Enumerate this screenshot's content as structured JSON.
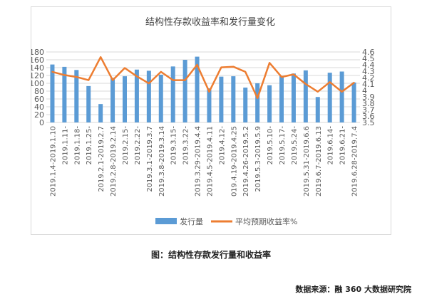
{
  "chart_data": {
    "type": "bar",
    "title": "结构性存款收益率和发行量变化",
    "categories": [
      "2019.1.4-2019.1.10",
      "2019.1.11-",
      "2019.1.18-",
      "2019.1.25-",
      "2019.2.1-2019.2.7",
      "2019.2.8-2019.2.14",
      "2019.2.15-",
      "2019.2.22-",
      "2019.3.1-2019.3.7",
      "2019.3.8-2019.3.14",
      "2019.3.15-",
      "2019.3.22-",
      "2019.3.29-2019.4.4",
      "2019.4.5-2019.4.11",
      "2019.4.12-",
      "019.4.19-2019.4.25",
      "2019.4.26-2019.5.2",
      "2019.5.3-2019.5.9",
      "2019.5.10-",
      "2019.5.17-",
      "2019.5.24-",
      "2019.5.31-2019.6.6",
      "2019.6.7-2019.6.13",
      "2019.6.14-",
      "2019.6.21-",
      "2019.6.28-2019.7.4"
    ],
    "series": [
      {
        "name": "发行量",
        "type": "bar",
        "axis": "left",
        "color": "#5b9bd5",
        "values": [
          148,
          142,
          134,
          93,
          47,
          114,
          118,
          135,
          132,
          122,
          143,
          160,
          168,
          87,
          117,
          118,
          89,
          100,
          95,
          119,
          125,
          133,
          65,
          127,
          130,
          102
        ]
      },
      {
        "name": "平均预期收益率%",
        "type": "line",
        "axis": "right",
        "color": "#ed7d31",
        "values": [
          4.29,
          4.24,
          4.21,
          4.16,
          4.52,
          4.16,
          4.35,
          4.22,
          4.11,
          4.29,
          4.16,
          4.16,
          4.4,
          3.98,
          4.36,
          4.37,
          4.29,
          3.88,
          4.43,
          4.21,
          4.25,
          4.1,
          3.98,
          4.13,
          3.98,
          4.12
        ]
      }
    ],
    "y_left": {
      "ylim": [
        0,
        180
      ],
      "ticks": [
        "0",
        "20",
        "40",
        "60",
        "80",
        "100",
        "120",
        "140",
        "160",
        "180"
      ]
    },
    "y_right": {
      "ylim": [
        3.5,
        4.6
      ],
      "ticks": [
        "3.5",
        "3.6",
        "3.7",
        "3.8",
        "3.9",
        "4",
        "4.1",
        "4.2",
        "4.3",
        "4.4",
        "4.5",
        "4.6"
      ]
    },
    "legend_position": "bottom",
    "grid": true
  },
  "caption": "图：结构性存款发行量和收益率",
  "source": "数据来源：融 360 大数据研究院"
}
